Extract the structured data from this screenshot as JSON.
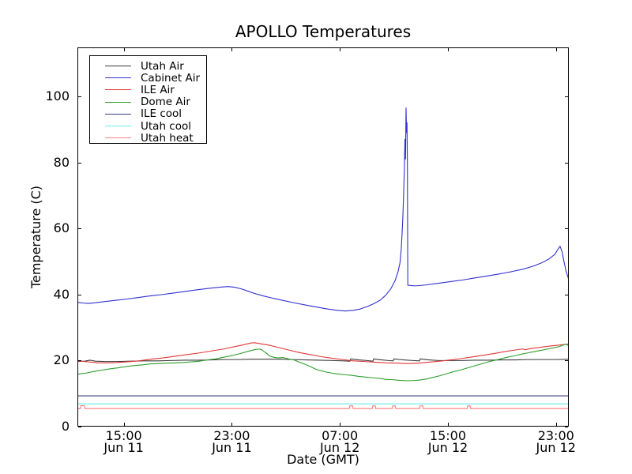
{
  "chart_data": {
    "type": "line",
    "title": "APOLLO Temperatures",
    "xlabel": "Date (GMT)",
    "ylabel": "Temperature (C)",
    "x_unit": "hours since Jun 11 00:00 GMT",
    "xlim": [
      11.57,
      47.95
    ],
    "ylim": [
      0,
      114.8
    ],
    "grid": false,
    "legend_position": "upper left",
    "y_ticks": [
      0,
      20,
      40,
      60,
      80,
      100
    ],
    "x_ticks": [
      {
        "hour": 15,
        "time": "15:00",
        "date": "Jun 11"
      },
      {
        "hour": 23,
        "time": "23:00",
        "date": "Jun 11"
      },
      {
        "hour": 31,
        "time": "07:00",
        "date": "Jun 12"
      },
      {
        "hour": 39,
        "time": "15:00",
        "date": "Jun 12"
      },
      {
        "hour": 47,
        "time": "23:00",
        "date": "Jun 12"
      }
    ],
    "series": [
      {
        "name": "Utah Air",
        "color": "#3a3a3a",
        "points": [
          [
            11.6,
            19.7
          ],
          [
            12.1,
            19.8
          ],
          [
            12.5,
            20.1
          ],
          [
            12.9,
            19.8
          ],
          [
            13.6,
            19.7
          ],
          [
            14.5,
            19.7
          ],
          [
            15.5,
            19.8
          ],
          [
            16.5,
            19.9
          ],
          [
            17.5,
            19.9
          ],
          [
            18.5,
            20.0
          ],
          [
            19.5,
            20.1
          ],
          [
            20.5,
            20.1
          ],
          [
            21.5,
            20.2
          ],
          [
            22.5,
            20.3
          ],
          [
            23.5,
            20.3
          ],
          [
            24.5,
            20.4
          ],
          [
            25.5,
            20.4
          ],
          [
            26.5,
            20.4
          ],
          [
            27.5,
            20.3
          ],
          [
            28.5,
            20.2
          ],
          [
            29.5,
            20.1
          ],
          [
            30.5,
            20.0
          ],
          [
            31.3,
            19.9
          ],
          [
            31.75,
            19.8
          ],
          [
            31.8,
            20.5
          ],
          [
            32.4,
            20.2
          ],
          [
            33.0,
            20.0
          ],
          [
            33.45,
            19.8
          ],
          [
            33.5,
            20.5
          ],
          [
            34.1,
            20.2
          ],
          [
            34.6,
            20.0
          ],
          [
            34.95,
            19.9
          ],
          [
            35.0,
            20.5
          ],
          [
            35.7,
            20.2
          ],
          [
            36.4,
            20.0
          ],
          [
            36.9,
            19.9
          ],
          [
            36.95,
            20.5
          ],
          [
            37.6,
            20.2
          ],
          [
            38.3,
            20.0
          ],
          [
            39.0,
            20.0
          ],
          [
            40.0,
            20.0
          ],
          [
            41.0,
            20.1
          ],
          [
            42.0,
            20.1
          ],
          [
            43.0,
            20.2
          ],
          [
            44.0,
            20.2
          ],
          [
            45.0,
            20.3
          ],
          [
            46.0,
            20.3
          ],
          [
            47.0,
            20.3
          ],
          [
            47.93,
            20.4
          ]
        ]
      },
      {
        "name": "Cabinet Air",
        "color": "#3030cf",
        "points": [
          [
            11.6,
            37.6
          ],
          [
            12.0,
            37.4
          ],
          [
            12.4,
            37.3
          ],
          [
            12.9,
            37.5
          ],
          [
            13.5,
            37.8
          ],
          [
            14.3,
            38.2
          ],
          [
            15.2,
            38.6
          ],
          [
            16.1,
            39.1
          ],
          [
            17.0,
            39.6
          ],
          [
            17.9,
            40.0
          ],
          [
            18.8,
            40.5
          ],
          [
            19.7,
            41.0
          ],
          [
            20.6,
            41.5
          ],
          [
            21.4,
            41.9
          ],
          [
            22.1,
            42.2
          ],
          [
            22.7,
            42.4
          ],
          [
            23.2,
            42.2
          ],
          [
            23.7,
            41.7
          ],
          [
            24.2,
            41.0
          ],
          [
            24.7,
            40.3
          ],
          [
            25.3,
            39.6
          ],
          [
            26.0,
            38.9
          ],
          [
            26.8,
            38.2
          ],
          [
            27.7,
            37.4
          ],
          [
            28.6,
            36.7
          ],
          [
            29.4,
            36.1
          ],
          [
            30.1,
            35.6
          ],
          [
            30.8,
            35.2
          ],
          [
            31.4,
            35.0
          ],
          [
            32.0,
            35.2
          ],
          [
            32.5,
            35.6
          ],
          [
            33.0,
            36.3
          ],
          [
            33.5,
            37.2
          ],
          [
            34.0,
            38.3
          ],
          [
            34.4,
            39.8
          ],
          [
            34.8,
            41.9
          ],
          [
            35.1,
            44.3
          ],
          [
            35.3,
            46.8
          ],
          [
            35.45,
            49.5
          ],
          [
            35.55,
            54.0
          ],
          [
            35.65,
            62.0
          ],
          [
            35.72,
            70.0
          ],
          [
            35.78,
            79.0
          ],
          [
            35.82,
            87.0
          ],
          [
            35.86,
            81.0
          ],
          [
            35.9,
            96.5
          ],
          [
            35.94,
            89.0
          ],
          [
            35.97,
            92.0
          ],
          [
            36.0,
            79.0
          ],
          [
            36.03,
            42.8
          ],
          [
            36.6,
            42.6
          ],
          [
            37.4,
            42.9
          ],
          [
            38.3,
            43.4
          ],
          [
            39.2,
            43.9
          ],
          [
            40.1,
            44.4
          ],
          [
            41.0,
            45.0
          ],
          [
            41.9,
            45.6
          ],
          [
            42.8,
            46.2
          ],
          [
            43.7,
            46.9
          ],
          [
            44.6,
            47.7
          ],
          [
            45.4,
            48.7
          ],
          [
            46.0,
            49.7
          ],
          [
            46.5,
            50.8
          ],
          [
            46.9,
            52.1
          ],
          [
            47.2,
            54.0
          ],
          [
            47.3,
            54.6
          ],
          [
            47.45,
            53.0
          ],
          [
            47.6,
            49.8
          ],
          [
            47.75,
            47.0
          ],
          [
            47.93,
            44.7
          ]
        ]
      },
      {
        "name": "ILE Air",
        "color": "#e03636",
        "points": [
          [
            11.6,
            19.9
          ],
          [
            12.1,
            19.7
          ],
          [
            12.6,
            19.5
          ],
          [
            13.1,
            19.3
          ],
          [
            13.7,
            19.3
          ],
          [
            14.4,
            19.4
          ],
          [
            15.2,
            19.6
          ],
          [
            16.1,
            19.9
          ],
          [
            17.0,
            20.4
          ],
          [
            17.9,
            20.8
          ],
          [
            18.8,
            21.3
          ],
          [
            19.7,
            21.8
          ],
          [
            20.6,
            22.3
          ],
          [
            21.5,
            22.9
          ],
          [
            22.4,
            23.5
          ],
          [
            23.2,
            24.2
          ],
          [
            23.9,
            24.8
          ],
          [
            24.4,
            25.3
          ],
          [
            24.7,
            25.4
          ],
          [
            25.1,
            25.1
          ],
          [
            25.7,
            24.7
          ],
          [
            26.4,
            24.0
          ],
          [
            27.2,
            23.2
          ],
          [
            28.0,
            22.4
          ],
          [
            28.8,
            21.8
          ],
          [
            29.6,
            21.2
          ],
          [
            30.4,
            20.7
          ],
          [
            31.2,
            20.3
          ],
          [
            32.0,
            19.9
          ],
          [
            32.8,
            19.7
          ],
          [
            33.6,
            19.5
          ],
          [
            34.4,
            19.3
          ],
          [
            35.2,
            19.2
          ],
          [
            36.0,
            19.1
          ],
          [
            36.8,
            19.2
          ],
          [
            37.6,
            19.5
          ],
          [
            38.4,
            19.8
          ],
          [
            39.2,
            20.2
          ],
          [
            40.0,
            20.6
          ],
          [
            40.8,
            21.1
          ],
          [
            41.6,
            21.6
          ],
          [
            42.4,
            22.1
          ],
          [
            43.2,
            22.7
          ],
          [
            44.0,
            23.2
          ],
          [
            44.5,
            23.5
          ],
          [
            44.75,
            23.3
          ],
          [
            45.1,
            23.6
          ],
          [
            45.8,
            24.0
          ],
          [
            46.6,
            24.4
          ],
          [
            47.3,
            24.7
          ],
          [
            47.93,
            25.0
          ]
        ]
      },
      {
        "name": "Dome Air",
        "color": "#2f9e2f",
        "points": [
          [
            11.6,
            15.9
          ],
          [
            12.2,
            16.2
          ],
          [
            12.8,
            16.7
          ],
          [
            13.4,
            17.1
          ],
          [
            14.0,
            17.5
          ],
          [
            14.6,
            17.8
          ],
          [
            15.2,
            18.2
          ],
          [
            15.8,
            18.5
          ],
          [
            16.4,
            18.7
          ],
          [
            17.0,
            19.0
          ],
          [
            17.6,
            19.1
          ],
          [
            18.2,
            19.2
          ],
          [
            18.8,
            19.3
          ],
          [
            19.4,
            19.4
          ],
          [
            20.0,
            19.6
          ],
          [
            20.6,
            19.8
          ],
          [
            21.2,
            20.2
          ],
          [
            21.8,
            20.5
          ],
          [
            22.4,
            21.0
          ],
          [
            23.0,
            21.5
          ],
          [
            23.6,
            22.1
          ],
          [
            24.2,
            22.8
          ],
          [
            24.7,
            23.3
          ],
          [
            25.0,
            23.5
          ],
          [
            25.2,
            23.3
          ],
          [
            25.5,
            22.4
          ],
          [
            25.8,
            21.4
          ],
          [
            26.1,
            21.0
          ],
          [
            26.4,
            20.8
          ],
          [
            26.8,
            20.9
          ],
          [
            27.2,
            20.5
          ],
          [
            27.6,
            20.2
          ],
          [
            28.0,
            19.5
          ],
          [
            28.4,
            18.9
          ],
          [
            28.8,
            18.2
          ],
          [
            29.2,
            17.4
          ],
          [
            29.6,
            16.9
          ],
          [
            30.0,
            16.5
          ],
          [
            30.4,
            16.2
          ],
          [
            30.9,
            15.9
          ],
          [
            31.4,
            15.7
          ],
          [
            31.9,
            15.5
          ],
          [
            32.4,
            15.2
          ],
          [
            32.9,
            15.0
          ],
          [
            33.4,
            14.8
          ],
          [
            33.9,
            14.6
          ],
          [
            34.4,
            14.3
          ],
          [
            34.9,
            14.2
          ],
          [
            35.4,
            14.0
          ],
          [
            35.9,
            13.9
          ],
          [
            36.4,
            13.9
          ],
          [
            36.9,
            14.1
          ],
          [
            37.4,
            14.4
          ],
          [
            37.9,
            14.9
          ],
          [
            38.4,
            15.4
          ],
          [
            38.9,
            16.0
          ],
          [
            39.4,
            16.6
          ],
          [
            39.9,
            17.1
          ],
          [
            40.4,
            17.7
          ],
          [
            40.9,
            18.3
          ],
          [
            41.4,
            18.9
          ],
          [
            41.9,
            19.5
          ],
          [
            42.4,
            20.0
          ],
          [
            42.9,
            20.5
          ],
          [
            43.4,
            21.0
          ],
          [
            43.9,
            21.4
          ],
          [
            44.4,
            21.9
          ],
          [
            44.9,
            22.3
          ],
          [
            45.4,
            22.7
          ],
          [
            45.9,
            23.1
          ],
          [
            46.4,
            23.5
          ],
          [
            46.9,
            23.9
          ],
          [
            47.3,
            24.3
          ],
          [
            47.6,
            24.8
          ],
          [
            47.8,
            24.9
          ],
          [
            47.93,
            24.5
          ]
        ]
      },
      {
        "name": "ILE cool",
        "color": "#3d3d82",
        "points": [
          [
            11.6,
            9.3
          ],
          [
            47.93,
            9.3
          ]
        ]
      },
      {
        "name": "Utah cool",
        "color": "#62efef",
        "points": [
          [
            11.6,
            6.9
          ],
          [
            47.93,
            6.9
          ]
        ]
      },
      {
        "name": "Utah heat",
        "color": "#ff7b7b",
        "points": [
          [
            11.6,
            5.4
          ],
          [
            11.78,
            5.4
          ],
          [
            11.82,
            6.35
          ],
          [
            12.08,
            6.35
          ],
          [
            12.12,
            5.45
          ],
          [
            31.7,
            5.45
          ],
          [
            31.74,
            6.3
          ],
          [
            31.94,
            6.3
          ],
          [
            31.98,
            5.45
          ],
          [
            33.4,
            5.45
          ],
          [
            33.44,
            6.3
          ],
          [
            33.62,
            6.3
          ],
          [
            33.66,
            5.45
          ],
          [
            34.88,
            5.45
          ],
          [
            34.92,
            6.3
          ],
          [
            35.1,
            6.3
          ],
          [
            35.14,
            5.45
          ],
          [
            36.9,
            5.45
          ],
          [
            36.94,
            6.3
          ],
          [
            37.14,
            6.3
          ],
          [
            37.18,
            5.45
          ],
          [
            40.42,
            5.45
          ],
          [
            40.46,
            6.3
          ],
          [
            40.64,
            6.3
          ],
          [
            40.68,
            5.45
          ],
          [
            47.93,
            5.45
          ]
        ]
      }
    ]
  }
}
